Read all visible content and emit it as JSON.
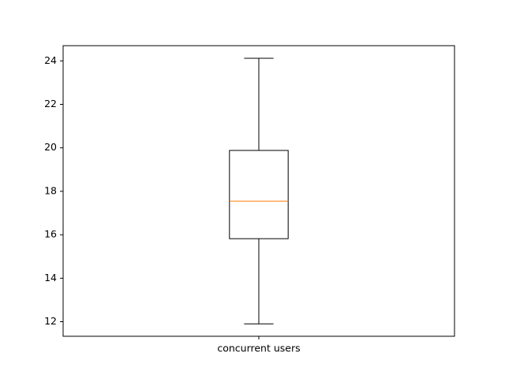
{
  "chart_data": {
    "type": "box",
    "title": "",
    "xlabel": "",
    "ylabel": "",
    "categories": [
      "concurrent users"
    ],
    "boxes": [
      {
        "category": "concurrent users",
        "whisker_low": 11.9,
        "q1": 15.82,
        "median": 17.55,
        "q3": 19.88,
        "whisker_high": 24.12
      }
    ],
    "ylim": [
      11.33,
      24.7
    ],
    "yticks": [
      12,
      14,
      16,
      18,
      20,
      22,
      24
    ],
    "grid": false,
    "colors": {
      "box": "#000000",
      "median": "#ff7f0e",
      "axes": "#000000"
    }
  }
}
